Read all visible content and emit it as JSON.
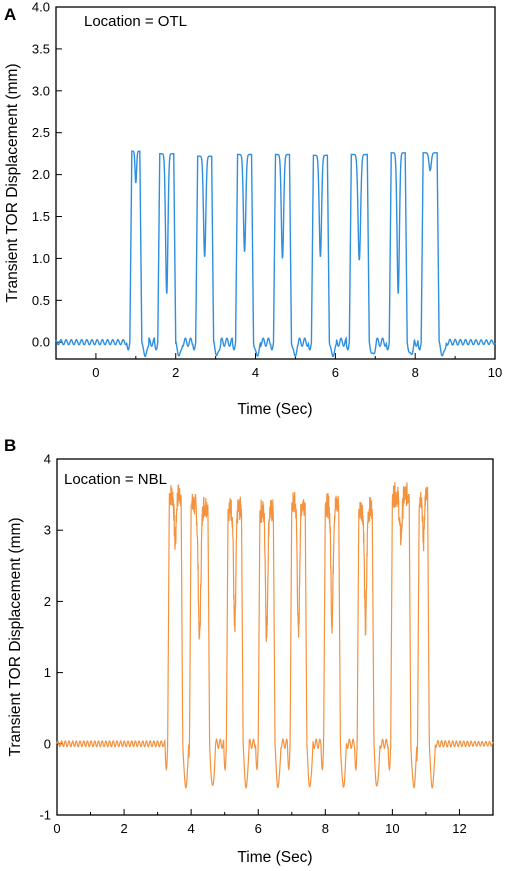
{
  "chart_data": [
    {
      "type": "line",
      "panel_label": "A",
      "annotation": "Location = OTL",
      "xlabel": "Time (Sec)",
      "ylabel": "Transient TOR Displacement (mm)",
      "xlim": [
        -1,
        10
      ],
      "ylim": [
        -0.2,
        4.0
      ],
      "x_ticks": [
        "0",
        "2",
        "4",
        "6",
        "8",
        "10"
      ],
      "y_ticks": [
        "0.0",
        "0.5",
        "1.0",
        "1.5",
        "2.0",
        "2.5",
        "3.0",
        "3.5",
        "4.0"
      ],
      "color": "#2f8fde",
      "series": [
        {
          "baseline": 0.0,
          "pulses": [
            {
              "start": 0.85,
              "end": 1.15,
              "peak": 2.28,
              "dip": 1.9
            },
            {
              "start": 1.55,
              "end": 2.0,
              "peak": 2.25,
              "dip": 0.58
            },
            {
              "start": 2.5,
              "end": 2.95,
              "peak": 2.22,
              "dip": 1.02
            },
            {
              "start": 3.5,
              "end": 3.95,
              "peak": 2.24,
              "dip": 1.08
            },
            {
              "start": 4.45,
              "end": 4.9,
              "peak": 2.24,
              "dip": 1.0
            },
            {
              "start": 5.4,
              "end": 5.85,
              "peak": 2.23,
              "dip": 1.02
            },
            {
              "start": 6.35,
              "end": 6.85,
              "peak": 2.24,
              "dip": 0.98
            },
            {
              "start": 7.35,
              "end": 7.8,
              "peak": 2.26,
              "dip": 0.58
            },
            {
              "start": 8.15,
              "end": 8.6,
              "peak": 2.26,
              "dip": 2.05
            }
          ],
          "trough": -0.15
        }
      ]
    },
    {
      "type": "line",
      "panel_label": "B",
      "annotation": "Location = NBL",
      "xlabel": "Time (Sec)",
      "ylabel": "Transient TOR Displacement (mm)",
      "xlim": [
        0,
        13
      ],
      "ylim": [
        -1,
        4
      ],
      "x_ticks": [
        "0",
        "2",
        "4",
        "6",
        "8",
        "10",
        "12"
      ],
      "y_ticks": [
        "-1",
        "0",
        "1",
        "2",
        "3",
        "4"
      ],
      "color": "#f5923e",
      "series": [
        {
          "baseline": 0.0,
          "pulses": [
            {
              "start": 3.3,
              "end": 3.75,
              "peak": 3.5,
              "dip": 2.8
            },
            {
              "start": 3.95,
              "end": 4.55,
              "peak": 3.35,
              "dip": 1.5
            },
            {
              "start": 5.05,
              "end": 5.55,
              "peak": 3.3,
              "dip": 1.55
            },
            {
              "start": 6.0,
              "end": 6.5,
              "peak": 3.27,
              "dip": 1.5
            },
            {
              "start": 6.95,
              "end": 7.45,
              "peak": 3.38,
              "dip": 1.5
            },
            {
              "start": 7.95,
              "end": 8.45,
              "peak": 3.35,
              "dip": 1.7
            },
            {
              "start": 8.95,
              "end": 9.45,
              "peak": 3.3,
              "dip": 1.6
            },
            {
              "start": 9.95,
              "end": 10.55,
              "peak": 3.5,
              "dip": 2.9
            },
            {
              "start": 10.75,
              "end": 11.1,
              "peak": 3.47,
              "dip": 2.8
            }
          ],
          "trough": -0.6
        }
      ]
    }
  ]
}
